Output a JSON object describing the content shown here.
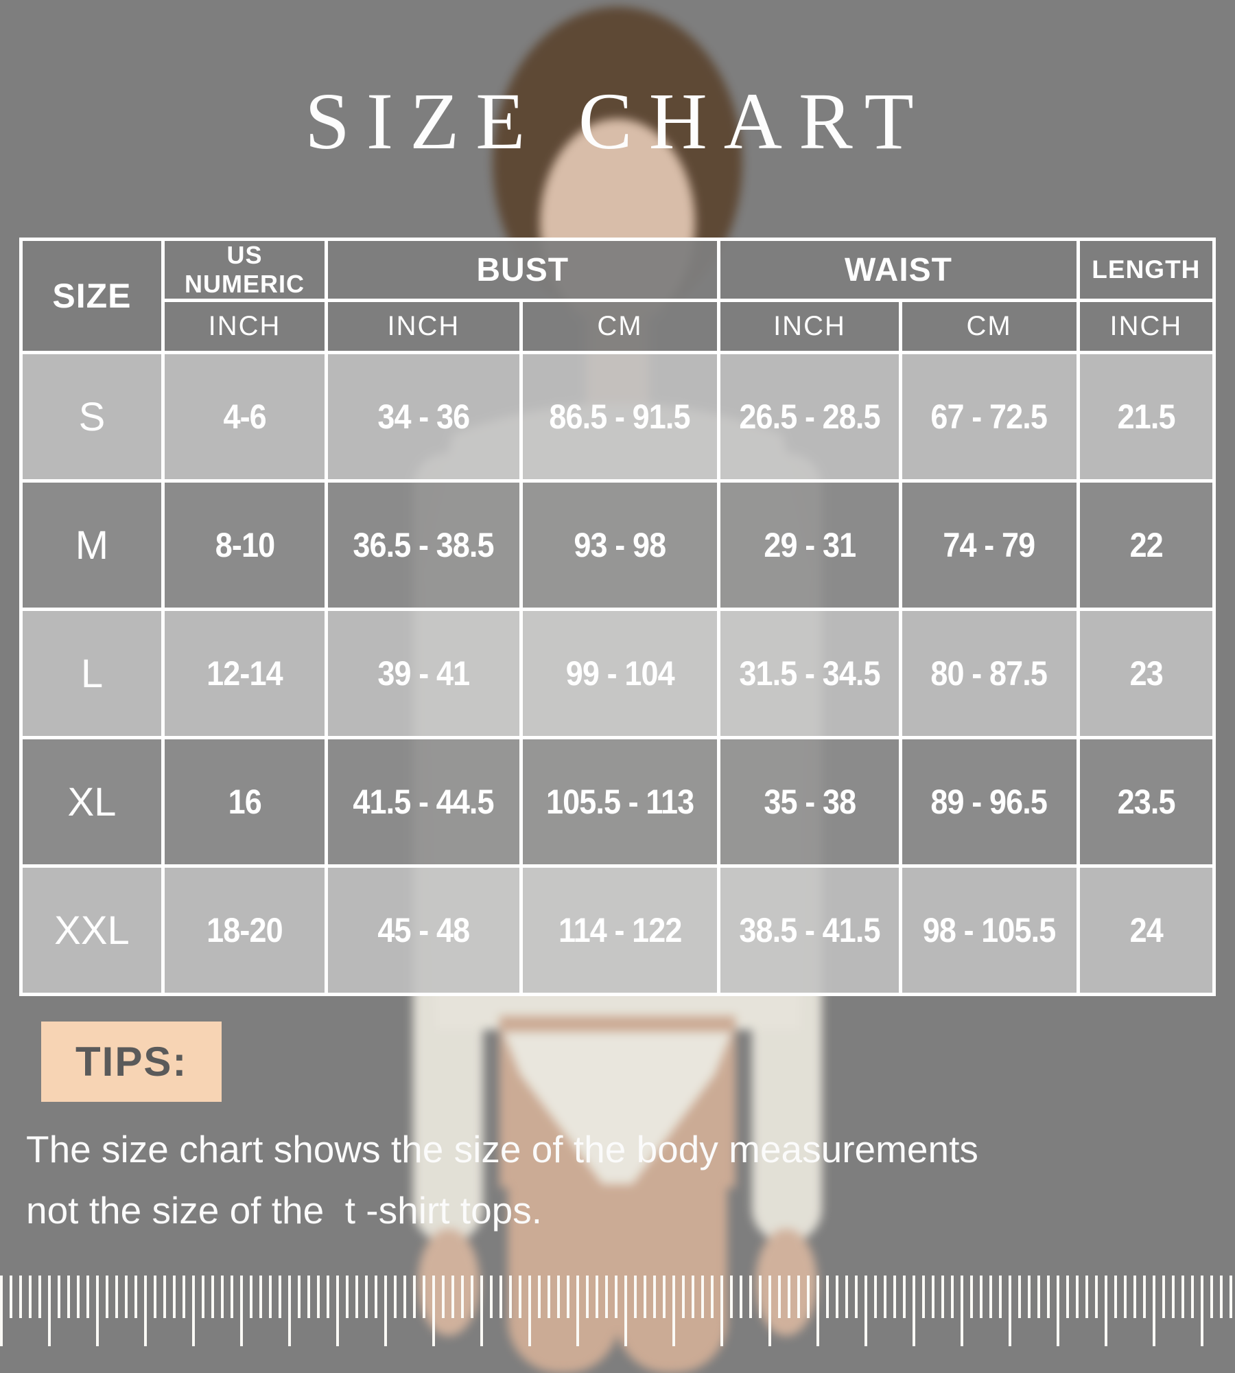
{
  "title": "SIZE CHART",
  "colors": {
    "background": "#7e7e7e",
    "table_border": "#ffffff",
    "table_text": "#ffffff",
    "row_light": "#c1c1c1",
    "row_dark": "#8d8d8d",
    "tips_badge_bg": "#f7d4b4",
    "tips_badge_text": "#5a5a5a",
    "note_text": "#fbfbfb"
  },
  "table": {
    "header_row1": [
      "SIZE",
      "US NUMERIC",
      "BUST",
      "WAIST",
      "LENGTH"
    ],
    "header_row2": [
      "INCH",
      "INCH",
      "CM",
      "INCH",
      "CM",
      "INCH"
    ],
    "rows": [
      {
        "size": "S",
        "values": [
          "4-6",
          "34 - 36",
          "86.5 - 91.5",
          "26.5 - 28.5",
          "67 - 72.5",
          "21.5"
        ]
      },
      {
        "size": "M",
        "values": [
          "8-10",
          "36.5 - 38.5",
          "93 - 98",
          "29 - 31",
          "74 - 79",
          "22"
        ]
      },
      {
        "size": "L",
        "values": [
          "12-14",
          "39 - 41",
          "99 - 104",
          "31.5 - 34.5",
          "80 - 87.5",
          "23"
        ]
      },
      {
        "size": "XL",
        "values": [
          "16",
          "41.5 - 44.5",
          "105.5 - 113",
          "35 - 38",
          "89 - 96.5",
          "23.5"
        ]
      },
      {
        "size": "XXL",
        "values": [
          "18-20",
          "45 - 48",
          "114 - 122",
          "38.5 - 41.5",
          "98 - 105.5",
          "24"
        ]
      }
    ]
  },
  "tips": {
    "label": "TIPS:",
    "line1": "The size chart shows the size of the body measurements",
    "line2": "not the size of the  t -shirt tops."
  },
  "chart_data": {
    "type": "table",
    "title": "SIZE CHART",
    "columns": [
      "SIZE",
      "US NUMERIC (INCH)",
      "BUST (INCH)",
      "BUST (CM)",
      "WAIST (INCH)",
      "WAIST (CM)",
      "LENGTH (INCH)"
    ],
    "rows": [
      [
        "S",
        "4-6",
        "34 - 36",
        "86.5 - 91.5",
        "26.5 - 28.5",
        "67 - 72.5",
        "21.5"
      ],
      [
        "M",
        "8-10",
        "36.5 - 38.5",
        "93 - 98",
        "29 - 31",
        "74 - 79",
        "22"
      ],
      [
        "L",
        "12-14",
        "39 - 41",
        "99 - 104",
        "31.5 - 34.5",
        "80 - 87.5",
        "23"
      ],
      [
        "XL",
        "16",
        "41.5 - 44.5",
        "105.5 - 113",
        "35 - 38",
        "89 - 96.5",
        "23.5"
      ],
      [
        "XXL",
        "18-20",
        "45 - 48",
        "114 - 122",
        "38.5 - 41.5",
        "98 - 105.5",
        "24"
      ]
    ]
  }
}
